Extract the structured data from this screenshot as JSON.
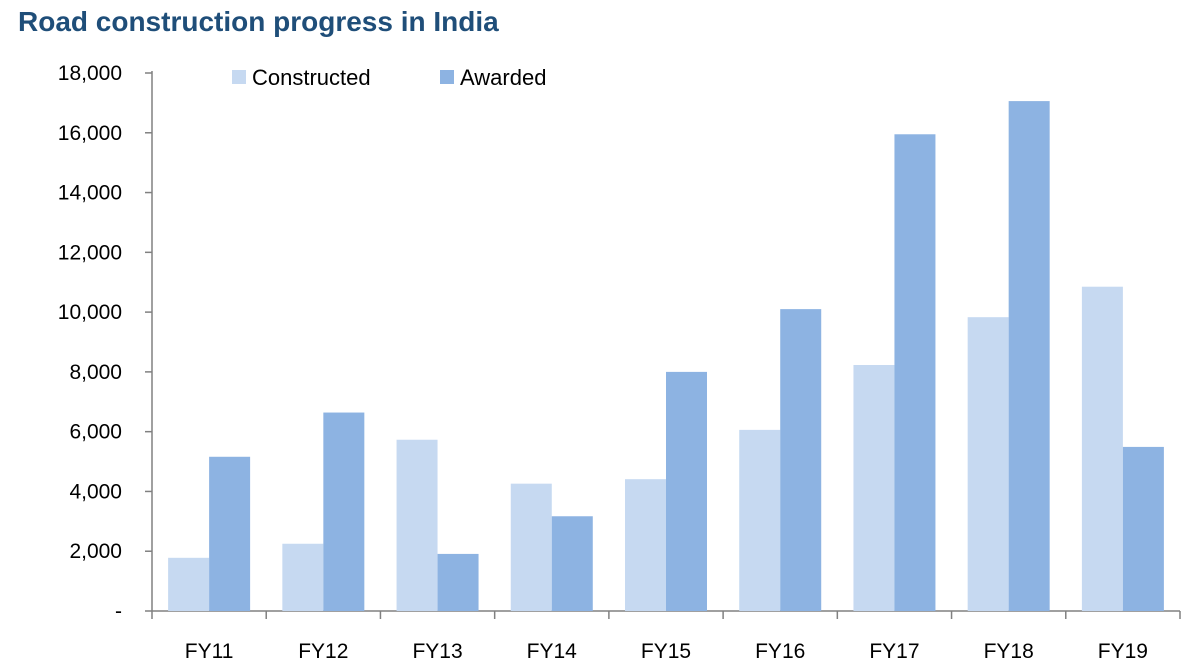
{
  "chart_data": {
    "type": "bar",
    "title": "Road construction progress in India",
    "xlabel": "",
    "ylabel": "",
    "categories": [
      "FY11",
      "FY12",
      "FY13",
      "FY14",
      "FY15",
      "FY16",
      "FY17",
      "FY18",
      "FY19"
    ],
    "series": [
      {
        "name": "Constructed",
        "color": "#c6d9f1",
        "values": [
          1780,
          2250,
          5730,
          4260,
          4410,
          6060,
          8230,
          9830,
          10850
        ]
      },
      {
        "name": "Awarded",
        "color": "#8db3e2",
        "values": [
          5160,
          6640,
          1910,
          3170,
          8000,
          10100,
          15950,
          17060,
          5490
        ]
      }
    ],
    "ylim": [
      0,
      18000
    ],
    "yticks": [
      0,
      2000,
      4000,
      6000,
      8000,
      10000,
      12000,
      14000,
      16000,
      18000
    ],
    "ytick_labels": [
      "-",
      "2,000",
      "4,000",
      "6,000",
      "8,000",
      "10,000",
      "12,000",
      "14,000",
      "16,000",
      "18,000"
    ],
    "grid": false,
    "legend_position": "top-left"
  }
}
